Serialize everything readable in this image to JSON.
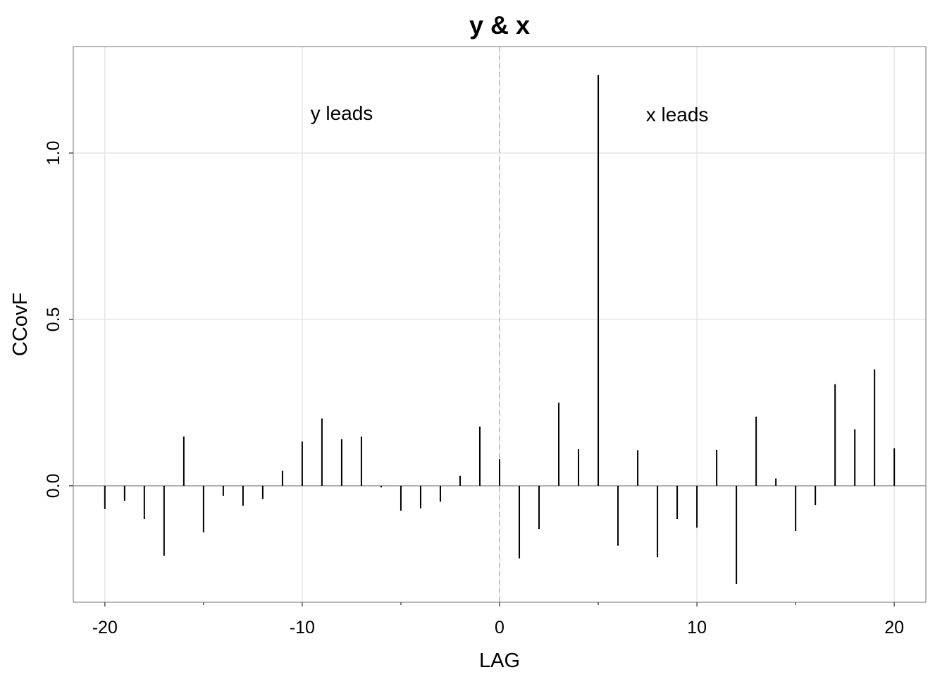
{
  "chart_data": {
    "type": "bar",
    "title": "y & x",
    "xlabel": "LAG",
    "ylabel": "CCovF",
    "xlim": [
      -21.6,
      21.6
    ],
    "ylim": [
      -0.35,
      1.32
    ],
    "xticks": [
      -20,
      -10,
      0,
      10,
      20
    ],
    "xtick_labels": [
      "-20",
      "-10",
      "0",
      "10",
      "20"
    ],
    "xminor": [
      -15,
      -5,
      5,
      15
    ],
    "yticks": [
      0.0,
      0.5,
      1.0
    ],
    "ytick_labels": [
      "0.0",
      "0.5",
      "1.0"
    ],
    "grid": true,
    "annotations": [
      {
        "text": "y leads",
        "x": -8.0,
        "y": 1.1
      },
      {
        "text": "x leads",
        "x": 9.0,
        "y": 1.095
      }
    ],
    "x": [
      -20,
      -19,
      -18,
      -17,
      -16,
      -15,
      -14,
      -13,
      -12,
      -11,
      -10,
      -9,
      -8,
      -7,
      -6,
      -5,
      -4,
      -3,
      -2,
      -1,
      0,
      1,
      2,
      3,
      4,
      5,
      6,
      7,
      8,
      9,
      10,
      11,
      12,
      13,
      14,
      15,
      16,
      17,
      18,
      19,
      20
    ],
    "values": [
      -0.07,
      -0.045,
      -0.1,
      -0.21,
      0.148,
      -0.14,
      -0.03,
      -0.06,
      -0.04,
      0.045,
      0.133,
      0.202,
      0.14,
      0.148,
      -0.005,
      -0.075,
      -0.068,
      -0.048,
      0.03,
      0.178,
      0.08,
      -0.218,
      -0.13,
      0.25,
      0.11,
      1.235,
      -0.18,
      0.107,
      -0.215,
      -0.1,
      -0.126,
      0.108,
      -0.295,
      0.208,
      0.022,
      -0.136,
      -0.058,
      0.305,
      0.17,
      0.35,
      0.113
    ],
    "colors": {
      "bars": "#000000",
      "grid": "#e5e5e5",
      "zero_line": "#a0a0a0",
      "frame": "#a0a0a0",
      "dashed": "#b8b8b8"
    }
  }
}
